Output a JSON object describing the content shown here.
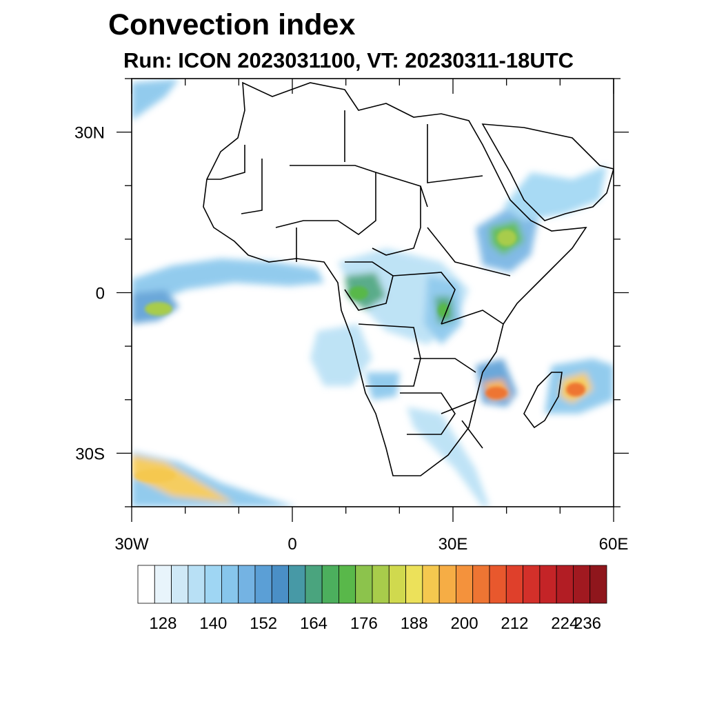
{
  "title": "Convection index",
  "subtitle": "Run: ICON 2023031100,  VT: 20230311-18UTC",
  "axes": {
    "lon_labels": [
      {
        "lon": -30,
        "label": "30W"
      },
      {
        "lon": 0,
        "label": "0"
      },
      {
        "lon": 30,
        "label": "30E"
      },
      {
        "lon": 60,
        "label": "60E"
      }
    ],
    "lat_labels": [
      {
        "lat": 30,
        "label": "30N"
      },
      {
        "lat": 0,
        "label": "0"
      },
      {
        "lat": -30,
        "label": "30S"
      }
    ],
    "lon_range": [
      -30,
      60
    ],
    "lat_range": [
      -40,
      40
    ]
  },
  "colorbar": {
    "colors": [
      "#ffffff",
      "#e8f4fb",
      "#cfe9f7",
      "#b8e0f5",
      "#9fd6f3",
      "#87c6ec",
      "#74b3e3",
      "#5b9fd6",
      "#4a8fc6",
      "#4799a6",
      "#4aa47e",
      "#4caf5d",
      "#59b84a",
      "#8cc34c",
      "#a8cc4b",
      "#d0d94e",
      "#ece15a",
      "#f5c84f",
      "#f6ad45",
      "#f4923c",
      "#ee7533",
      "#e8582d",
      "#df402b",
      "#d3302a",
      "#c42427",
      "#b21d24",
      "#a11920",
      "#8f161c"
    ],
    "labels": [
      "128",
      "140",
      "152",
      "164",
      "176",
      "188",
      "200",
      "212",
      "224",
      "236"
    ],
    "label_positions": [
      1,
      4,
      7,
      10,
      13,
      16,
      19,
      22,
      25,
      28
    ]
  }
}
